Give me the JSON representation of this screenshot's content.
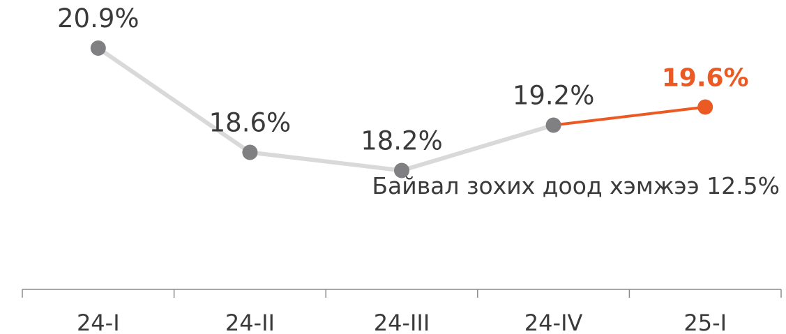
{
  "chart_data": {
    "type": "line",
    "categories": [
      "24-I",
      "24-II",
      "24-III",
      "24-IV",
      "25-I"
    ],
    "values": [
      20.9,
      18.6,
      18.2,
      19.2,
      19.6
    ],
    "data_labels": [
      "20.9%",
      "18.6%",
      "18.2%",
      "19.2%",
      "19.6%"
    ],
    "annotation": "Байвал зохих доод хэмжээ 12.5%",
    "ylim": [
      17.5,
      21.5
    ],
    "grid": false,
    "legend": "none",
    "colors": {
      "line": "#d9d9d9",
      "marker": "#808083",
      "highlight": "#ec5a24",
      "text": "#3a3a3a",
      "axis": "#8c8c8c"
    }
  }
}
